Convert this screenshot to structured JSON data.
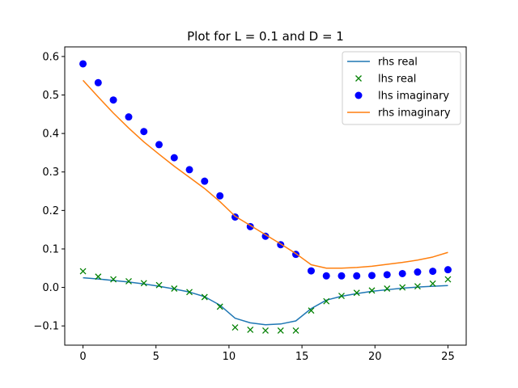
{
  "chart_data": {
    "type": "line",
    "title": "Plot for L = 0.1 and D = 1",
    "xlabel": "",
    "ylabel": "",
    "xlim": [
      -1.25,
      26.25
    ],
    "ylim": [
      -0.15,
      0.625
    ],
    "grid": false,
    "legend_position": "top-right",
    "x_ticks": [
      0,
      5,
      10,
      15,
      20,
      25
    ],
    "x_tick_labels": [
      "0",
      "5",
      "10",
      "15",
      "20",
      "25"
    ],
    "y_ticks": [
      -0.1,
      0.0,
      0.1,
      0.2,
      0.3,
      0.4,
      0.5,
      0.6
    ],
    "y_tick_labels": [
      "−0.1",
      "0.0",
      "0.1",
      "0.2",
      "0.3",
      "0.4",
      "0.5",
      "0.6"
    ],
    "series": [
      {
        "name": "rhs real",
        "style": "line",
        "color": "#1f77b4",
        "x": [
          0,
          1.04,
          2.08,
          3.13,
          4.17,
          5.21,
          6.25,
          7.29,
          8.33,
          9.38,
          10.42,
          11.46,
          12.5,
          13.54,
          14.58,
          15.63,
          16.67,
          17.71,
          18.75,
          19.79,
          20.83,
          21.88,
          22.92,
          23.96,
          25
        ],
        "y": [
          0.025,
          0.022,
          0.018,
          0.014,
          0.009,
          0.003,
          -0.004,
          -0.012,
          -0.024,
          -0.046,
          -0.08,
          -0.092,
          -0.097,
          -0.095,
          -0.087,
          -0.055,
          -0.033,
          -0.023,
          -0.016,
          -0.01,
          -0.006,
          -0.002,
          0.001,
          0.003,
          0.005
        ]
      },
      {
        "name": "lhs real",
        "style": "x-marker",
        "color": "#008000",
        "x": [
          0,
          1.04,
          2.08,
          3.13,
          4.17,
          5.21,
          6.25,
          7.29,
          8.33,
          9.38,
          10.42,
          11.46,
          12.5,
          13.54,
          14.58,
          15.63,
          16.67,
          17.71,
          18.75,
          19.79,
          20.83,
          21.88,
          22.92,
          23.96,
          25
        ],
        "y": [
          0.042,
          0.028,
          0.021,
          0.016,
          0.011,
          0.006,
          -0.003,
          -0.012,
          -0.025,
          -0.05,
          -0.104,
          -0.11,
          -0.112,
          -0.112,
          -0.112,
          -0.06,
          -0.036,
          -0.022,
          -0.014,
          -0.008,
          -0.003,
          0.0,
          0.003,
          0.01,
          0.021
        ]
      },
      {
        "name": "lhs imaginary",
        "style": "circle-marker",
        "color": "#0000ff",
        "x": [
          0,
          1.04,
          2.08,
          3.13,
          4.17,
          5.21,
          6.25,
          7.29,
          8.33,
          9.38,
          10.42,
          11.46,
          12.5,
          13.54,
          14.58,
          15.63,
          16.67,
          17.71,
          18.75,
          19.79,
          20.83,
          21.88,
          22.92,
          23.96,
          25
        ],
        "y": [
          0.581,
          0.532,
          0.487,
          0.443,
          0.405,
          0.371,
          0.337,
          0.306,
          0.276,
          0.238,
          0.183,
          0.158,
          0.133,
          0.111,
          0.086,
          0.043,
          0.03,
          0.03,
          0.03,
          0.031,
          0.033,
          0.036,
          0.04,
          0.042,
          0.046
        ]
      },
      {
        "name": "rhs imaginary",
        "style": "line",
        "color": "#ff7f0e",
        "x": [
          0,
          1.04,
          2.08,
          3.13,
          4.17,
          5.21,
          6.25,
          7.29,
          8.33,
          9.38,
          10.42,
          11.46,
          12.5,
          13.54,
          14.58,
          15.63,
          16.67,
          17.71,
          18.75,
          19.79,
          20.83,
          21.88,
          22.92,
          23.96,
          25
        ],
        "y": [
          0.538,
          0.495,
          0.453,
          0.414,
          0.378,
          0.346,
          0.315,
          0.286,
          0.257,
          0.223,
          0.185,
          0.161,
          0.137,
          0.113,
          0.088,
          0.059,
          0.05,
          0.05,
          0.052,
          0.055,
          0.06,
          0.065,
          0.071,
          0.079,
          0.091
        ]
      }
    ]
  }
}
